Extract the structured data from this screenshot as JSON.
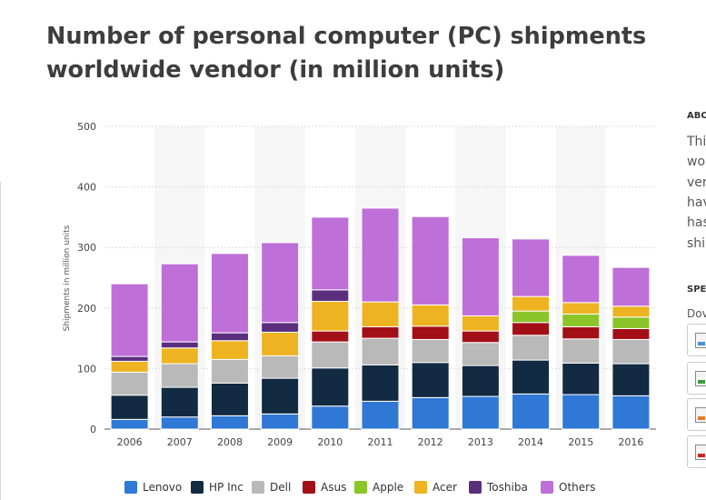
{
  "title": "Number of personal computer (PC) shipments worldwide vendor (in million units)",
  "side": {
    "about_heading": "ABO",
    "about_lines": [
      "Thi",
      "wo",
      "ver",
      "hav",
      "has",
      "shi"
    ],
    "spec_heading": "SPE",
    "download_label": "Dov"
  },
  "chart_data": {
    "type": "bar",
    "stacked": true,
    "ylabel": "Shipments in million units",
    "xlabel": "",
    "ylim": [
      0,
      500
    ],
    "yticks": [
      0,
      100,
      200,
      300,
      400,
      500
    ],
    "grid": true,
    "legend_position": "bottom",
    "categories": [
      "2006",
      "2007",
      "2008",
      "2009",
      "2010",
      "2011",
      "2012",
      "2013",
      "2014",
      "2015",
      "2016"
    ],
    "series": [
      {
        "name": "Lenovo",
        "color": "#2f78d6",
        "values": [
          16,
          20,
          22,
          25,
          38,
          46,
          52,
          54,
          58,
          57,
          55
        ]
      },
      {
        "name": "HP Inc",
        "color": "#122a42",
        "values": [
          40,
          49,
          54,
          59,
          63,
          60,
          58,
          51,
          56,
          52,
          53
        ]
      },
      {
        "name": "Dell",
        "color": "#b9b9b9",
        "values": [
          38,
          39,
          39,
          37,
          43,
          44,
          38,
          38,
          41,
          40,
          40
        ]
      },
      {
        "name": "Asus",
        "color": "#a30f17",
        "values": [
          0,
          0,
          0,
          0,
          18,
          19,
          22,
          19,
          21,
          20,
          18
        ]
      },
      {
        "name": "Apple",
        "color": "#8bc52a",
        "values": [
          0,
          0,
          0,
          0,
          0,
          0,
          0,
          0,
          19,
          21,
          19
        ]
      },
      {
        "name": "Acer",
        "color": "#eeb321",
        "values": [
          18,
          26,
          31,
          39,
          49,
          41,
          35,
          25,
          24,
          19,
          18
        ]
      },
      {
        "name": "Toshiba",
        "color": "#5b2f7e",
        "values": [
          8,
          10,
          13,
          16,
          19,
          0,
          0,
          0,
          0,
          0,
          0
        ]
      },
      {
        "name": "Others",
        "color": "#bf6fd8",
        "values": [
          120,
          129,
          131,
          132,
          120,
          155,
          146,
          129,
          95,
          78,
          64
        ]
      }
    ]
  }
}
